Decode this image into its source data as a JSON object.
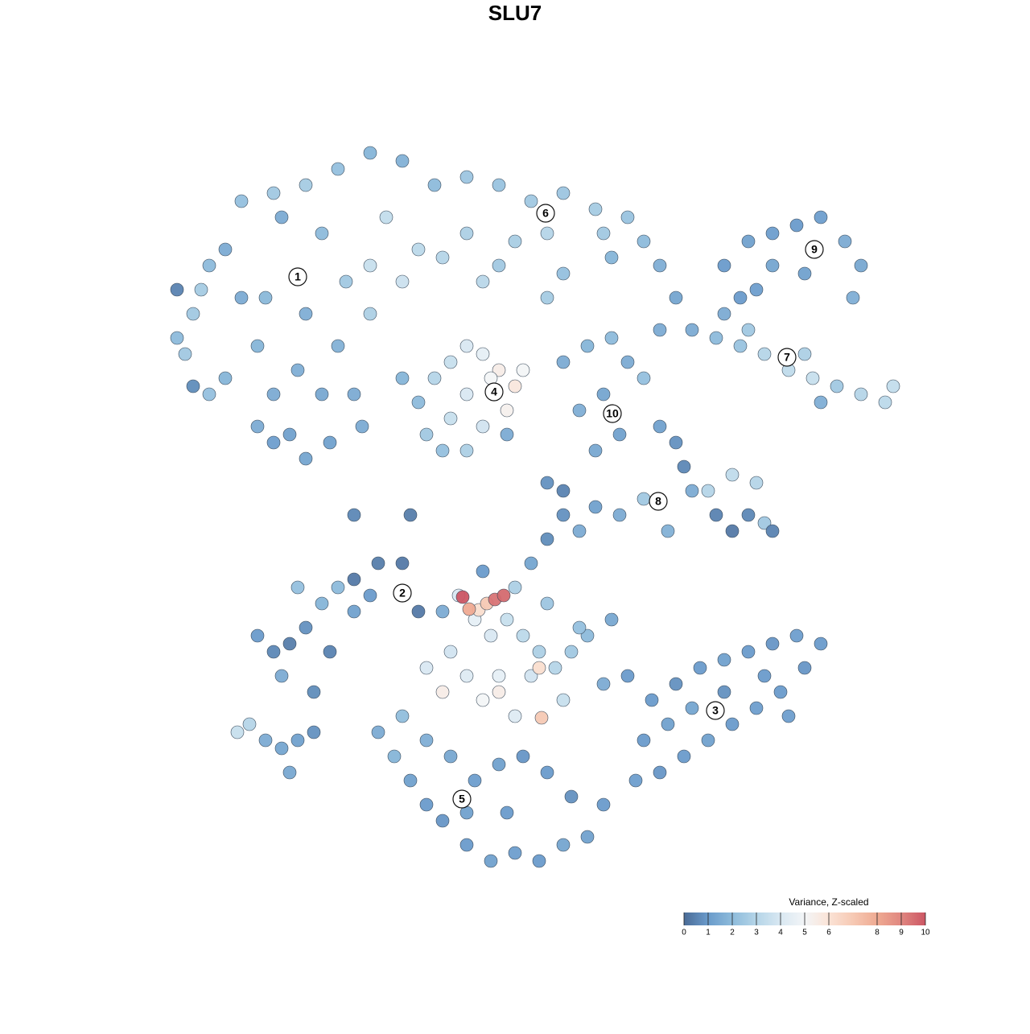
{
  "chart_data": {
    "type": "scatter",
    "title": "SLU7",
    "xlim": [
      0,
      93
    ],
    "ylim": [
      0,
      90.5
    ],
    "points": [
      [
        2,
        67,
        2
      ],
      [
        4,
        70,
        2.5
      ],
      [
        6,
        76,
        2
      ],
      [
        8,
        78,
        1.5
      ],
      [
        10,
        72,
        1.5
      ],
      [
        12,
        66,
        1.8
      ],
      [
        14,
        60,
        1.5
      ],
      [
        16,
        55,
        1.2
      ],
      [
        18,
        52,
        1.3
      ],
      [
        12,
        56,
        1.5
      ],
      [
        8,
        62,
        1.8
      ],
      [
        15,
        82,
        1.5
      ],
      [
        20,
        80,
        2
      ],
      [
        18,
        70,
        1.6
      ],
      [
        22,
        66,
        1.7
      ],
      [
        24,
        60,
        1.5
      ],
      [
        20,
        60,
        1.4
      ],
      [
        14,
        54,
        1.1
      ],
      [
        6,
        60,
        2.2
      ],
      [
        3,
        65,
        2.5
      ],
      [
        13,
        72,
        1.9
      ],
      [
        23,
        74,
        2.5
      ],
      [
        26,
        70,
        2.8
      ],
      [
        10,
        84,
        2.2
      ],
      [
        5,
        73,
        2.6
      ],
      [
        17,
        63,
        1.6
      ],
      [
        21,
        54,
        1.2
      ],
      [
        25,
        56,
        1.5
      ],
      [
        14,
        85,
        2.5
      ],
      [
        18,
        86,
        2.6
      ],
      [
        22,
        88,
        2.2
      ],
      [
        26,
        90,
        1.8
      ],
      [
        30,
        89,
        1.7
      ],
      [
        34,
        86,
        2
      ],
      [
        38,
        87,
        2.4
      ],
      [
        42,
        86,
        2.3
      ],
      [
        46,
        84,
        2.5
      ],
      [
        50,
        85,
        2.4
      ],
      [
        54,
        83,
        2.6
      ],
      [
        58,
        82,
        2.3
      ],
      [
        60,
        79,
        2
      ],
      [
        55,
        80,
        2.5
      ],
      [
        48,
        80,
        3
      ],
      [
        44,
        79,
        2.7
      ],
      [
        38,
        80,
        2.8
      ],
      [
        32,
        78,
        3.2
      ],
      [
        28,
        82,
        3.4
      ],
      [
        26,
        76,
        3.5
      ],
      [
        30,
        74,
        3.6
      ],
      [
        35,
        77,
        3
      ],
      [
        42,
        76,
        2.5
      ],
      [
        50,
        75,
        2.2
      ],
      [
        56,
        77,
        1.8
      ],
      [
        62,
        76,
        1.6
      ],
      [
        64,
        72,
        1.3
      ],
      [
        62,
        68,
        1.5
      ],
      [
        48,
        72,
        2.6
      ],
      [
        40,
        74,
        3.1
      ],
      [
        70,
        76,
        1
      ],
      [
        73,
        79,
        1.2
      ],
      [
        76,
        80,
        1.1
      ],
      [
        79,
        81,
        1
      ],
      [
        82,
        82,
        1.1
      ],
      [
        85,
        79,
        1.5
      ],
      [
        87,
        76,
        1.4
      ],
      [
        86,
        72,
        1.6
      ],
      [
        80,
        75,
        1.2
      ],
      [
        76,
        76,
        1.3
      ],
      [
        72,
        72,
        1
      ],
      [
        74,
        73,
        1.1
      ],
      [
        66,
        68,
        1.5
      ],
      [
        69,
        67,
        2
      ],
      [
        72,
        66,
        2.3
      ],
      [
        75,
        65,
        3
      ],
      [
        78,
        63,
        3.3
      ],
      [
        81,
        62,
        3.5
      ],
      [
        84,
        61,
        2.5
      ],
      [
        87,
        60,
        3
      ],
      [
        90,
        59,
        3.2
      ],
      [
        91,
        61,
        3.4
      ],
      [
        80,
        65,
        2.8
      ],
      [
        73,
        68,
        2.5
      ],
      [
        70,
        70,
        1.5
      ],
      [
        82,
        59,
        1.6
      ],
      [
        32,
        59,
        2
      ],
      [
        34,
        62,
        3
      ],
      [
        36,
        64,
        3.5
      ],
      [
        38,
        66,
        4
      ],
      [
        40,
        65,
        4.5
      ],
      [
        42,
        63,
        5.5
      ],
      [
        44,
        61,
        5.8
      ],
      [
        45,
        63,
        5
      ],
      [
        38,
        60,
        4
      ],
      [
        36,
        57,
        3.5
      ],
      [
        33,
        55,
        2.5
      ],
      [
        40,
        56,
        3.8
      ],
      [
        43,
        58,
        5.3
      ],
      [
        41,
        62,
        5
      ],
      [
        35,
        53,
        2.2
      ],
      [
        38,
        53,
        2.8
      ],
      [
        30,
        62,
        1.8
      ],
      [
        50,
        64,
        1.5
      ],
      [
        53,
        66,
        1.8
      ],
      [
        56,
        67,
        2
      ],
      [
        58,
        64,
        1.5
      ],
      [
        55,
        60,
        1.3
      ],
      [
        57,
        55,
        1.2
      ],
      [
        54,
        53,
        1.4
      ],
      [
        52,
        58,
        1.6
      ],
      [
        60,
        62,
        2.2
      ],
      [
        62,
        56,
        1.2
      ],
      [
        64,
        54,
        0.8
      ],
      [
        65,
        51,
        0.6
      ],
      [
        66,
        48,
        1.5
      ],
      [
        69,
        45,
        0.5
      ],
      [
        71,
        43,
        0.3
      ],
      [
        73,
        45,
        0.6
      ],
      [
        75,
        44,
        2.5
      ],
      [
        76,
        43,
        0.5
      ],
      [
        74,
        49,
        3
      ],
      [
        71,
        50,
        3.3
      ],
      [
        68,
        48,
        3
      ],
      [
        60,
        47,
        2.5
      ],
      [
        57,
        45,
        1.5
      ],
      [
        54,
        46,
        1.2
      ],
      [
        50,
        45,
        0.8
      ],
      [
        48,
        42,
        0.7
      ],
      [
        52,
        43,
        1.5
      ],
      [
        46,
        39,
        1.3
      ],
      [
        63,
        43,
        1.7
      ],
      [
        12,
        30,
        1
      ],
      [
        14,
        28,
        0.6
      ],
      [
        16,
        29,
        0.4
      ],
      [
        18,
        31,
        0.8
      ],
      [
        20,
        34,
        1.8
      ],
      [
        22,
        36,
        2
      ],
      [
        24,
        37,
        0.3
      ],
      [
        27,
        39,
        0.4
      ],
      [
        30,
        39,
        0.3
      ],
      [
        32,
        33,
        0.3
      ],
      [
        15,
        25,
        1.5
      ],
      [
        19,
        23,
        0.7
      ],
      [
        21,
        28,
        0.5
      ],
      [
        24,
        33,
        1.2
      ],
      [
        26,
        35,
        1
      ],
      [
        17,
        36,
        2.2
      ],
      [
        35,
        33,
        1.5
      ],
      [
        37,
        35,
        4
      ],
      [
        39,
        32,
        4.5
      ],
      [
        41,
        30,
        4
      ],
      [
        43,
        32,
        3.5
      ],
      [
        45,
        30,
        3.2
      ],
      [
        47,
        28,
        2.8
      ],
      [
        49,
        26,
        3
      ],
      [
        51,
        28,
        2.5
      ],
      [
        53,
        30,
        2
      ],
      [
        48,
        34,
        2.4
      ],
      [
        44,
        36,
        2.8
      ],
      [
        40,
        38,
        1
      ],
      [
        36,
        28,
        3.8
      ],
      [
        38,
        25,
        4.2
      ],
      [
        42,
        25,
        4.5
      ],
      [
        46,
        25,
        3.8
      ],
      [
        50,
        22,
        3.5
      ],
      [
        44,
        20,
        4.2
      ],
      [
        40,
        22,
        5
      ],
      [
        35,
        23,
        5.5
      ],
      [
        47,
        26,
        6.2
      ],
      [
        42,
        23,
        5.5
      ],
      [
        33,
        26,
        4
      ],
      [
        52,
        31,
        2.2
      ],
      [
        55,
        24,
        1.5
      ],
      [
        56,
        32,
        1.4
      ],
      [
        39.5,
        33.2,
        6.2
      ],
      [
        40.5,
        34,
        7
      ],
      [
        38.3,
        33.3,
        8
      ],
      [
        47.3,
        19.8,
        7
      ],
      [
        37.5,
        34.8,
        10
      ],
      [
        41.5,
        34.5,
        9.4
      ],
      [
        42.6,
        35,
        9.6
      ],
      [
        58,
        25,
        1
      ],
      [
        61,
        22,
        1
      ],
      [
        64,
        24,
        0.8
      ],
      [
        67,
        26,
        1
      ],
      [
        70,
        27,
        1.2
      ],
      [
        73,
        28,
        1
      ],
      [
        76,
        29,
        0.9
      ],
      [
        79,
        30,
        1.1
      ],
      [
        82,
        29,
        1
      ],
      [
        80,
        26,
        0.9
      ],
      [
        77,
        23,
        1
      ],
      [
        74,
        21,
        1.1
      ],
      [
        71,
        19,
        1
      ],
      [
        68,
        17,
        1.2
      ],
      [
        65,
        15,
        1
      ],
      [
        62,
        13,
        0.9
      ],
      [
        59,
        12,
        1.1
      ],
      [
        60,
        17,
        1
      ],
      [
        63,
        19,
        1.2
      ],
      [
        66,
        21,
        1.3
      ],
      [
        70,
        23,
        0.8
      ],
      [
        75,
        25,
        1
      ],
      [
        78,
        20,
        1.1
      ],
      [
        27,
        18,
        1.5
      ],
      [
        29,
        15,
        1.8
      ],
      [
        31,
        12,
        1.2
      ],
      [
        33,
        9,
        1
      ],
      [
        35,
        7,
        0.9
      ],
      [
        38,
        4,
        1
      ],
      [
        41,
        2,
        1.2
      ],
      [
        44,
        3,
        1.1
      ],
      [
        47,
        2,
        1
      ],
      [
        50,
        4,
        1.3
      ],
      [
        53,
        5,
        1.2
      ],
      [
        55,
        9,
        1
      ],
      [
        51,
        10,
        0.8
      ],
      [
        48,
        13,
        1
      ],
      [
        45,
        15,
        0.9
      ],
      [
        42,
        14,
        1.2
      ],
      [
        39,
        12,
        1.1
      ],
      [
        36,
        15,
        1.4
      ],
      [
        33,
        17,
        1.6
      ],
      [
        30,
        20,
        2.1
      ],
      [
        43,
        8,
        1
      ],
      [
        38,
        8,
        1.2
      ],
      [
        9.5,
        18,
        3.5
      ],
      [
        11,
        19,
        3
      ],
      [
        13,
        17,
        1.5
      ],
      [
        15,
        16,
        1.3
      ],
      [
        17,
        17,
        1.2
      ],
      [
        16,
        13,
        1.4
      ],
      [
        19,
        18,
        0.8
      ],
      [
        4,
        61,
        0.7
      ],
      [
        2,
        73,
        0.5
      ],
      [
        24,
        45,
        0.6
      ],
      [
        31,
        45,
        0.4
      ],
      [
        43,
        55,
        1.5
      ],
      [
        48,
        49,
        0.8
      ],
      [
        50,
        48,
        0.5
      ]
    ],
    "clusters": [
      {
        "label": "1",
        "x": 17,
        "y": 74.6
      },
      {
        "label": "2",
        "x": 30,
        "y": 35.3
      },
      {
        "label": "3",
        "x": 68.9,
        "y": 20.7
      },
      {
        "label": "4",
        "x": 41.4,
        "y": 60.3
      },
      {
        "label": "5",
        "x": 37.4,
        "y": 9.7
      },
      {
        "label": "6",
        "x": 47.8,
        "y": 82.5
      },
      {
        "label": "7",
        "x": 77.8,
        "y": 64.6
      },
      {
        "label": "8",
        "x": 61.8,
        "y": 46.7
      },
      {
        "label": "9",
        "x": 81.2,
        "y": 78
      },
      {
        "label": "10",
        "x": 56.1,
        "y": 57.6
      }
    ],
    "colorbar": {
      "title": "Variance, Z-scaled",
      "clim": [
        0,
        10
      ],
      "ticks": [
        0,
        1,
        2,
        3,
        4,
        5,
        6,
        8,
        9,
        10
      ],
      "colors": [
        "#4a6b96",
        "#6a9bcb",
        "#8dbbdb",
        "#b5d5e8",
        "#d9e8f2",
        "#f3f5f7",
        "#fbe3d6",
        "#f6c9b4",
        "#efaa92",
        "#e08780",
        "#cc5664"
      ]
    }
  }
}
